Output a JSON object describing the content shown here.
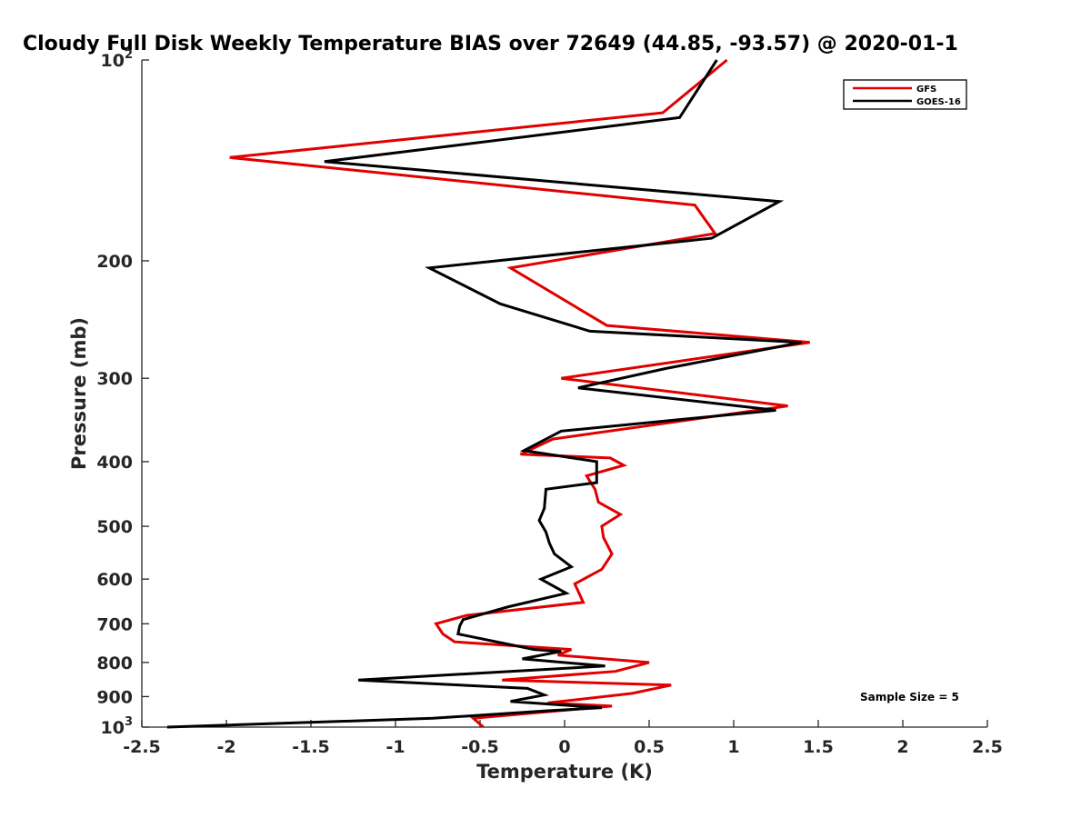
{
  "chart_data": {
    "type": "line",
    "title": "Cloudy Full Disk Weekly Temperature BIAS over 72649 (44.85, -93.57) @ 2020-01-1",
    "xlabel": "Temperature (K)",
    "ylabel": "Pressure (mb)",
    "xlim": [
      -2.5,
      2.5
    ],
    "ylim": [
      100,
      1000
    ],
    "y_scale": "log",
    "y_reversed": true,
    "x_ticks": [
      "-2.5",
      "-2",
      "-1.5",
      "-1",
      "-0.5",
      "0",
      "0.5",
      "1",
      "1.5",
      "2",
      "2.5"
    ],
    "y_ticks": [
      {
        "value": 100,
        "base": "10",
        "exp": "2"
      },
      {
        "value": 200,
        "label": "200"
      },
      {
        "value": 300,
        "label": "300"
      },
      {
        "value": 400,
        "label": "400"
      },
      {
        "value": 500,
        "label": "500"
      },
      {
        "value": 600,
        "label": "600"
      },
      {
        "value": 700,
        "label": "700"
      },
      {
        "value": 800,
        "label": "800"
      },
      {
        "value": 900,
        "label": "900"
      },
      {
        "value": 1000,
        "base": "10",
        "exp": "3"
      }
    ],
    "legend_position": "top-right",
    "annotation": "Sample Size = 5",
    "grid": false,
    "series": [
      {
        "name": "GFS",
        "color": "#e00000",
        "x": [
          0.96,
          0.58,
          -1.98,
          0.77,
          0.89,
          -0.32,
          0.25,
          1.45,
          -0.02,
          1.32,
          -0.07,
          -0.26,
          0.27,
          0.35,
          0.13,
          0.18,
          0.2,
          0.33,
          0.22,
          0.23,
          0.28,
          0.22,
          0.06,
          0.11,
          -0.58,
          -0.76,
          -0.72,
          -0.65,
          0.04,
          -0.04,
          0.5,
          0.3,
          -0.37,
          0.63,
          0.4,
          -0.1,
          0.28,
          -0.54,
          -0.48
        ],
        "y": [
          100,
          120,
          140,
          165,
          182,
          205,
          250,
          265,
          300,
          330,
          370,
          390,
          395,
          405,
          420,
          440,
          460,
          480,
          500,
          520,
          550,
          580,
          610,
          650,
          680,
          700,
          725,
          745,
          765,
          780,
          800,
          825,
          850,
          865,
          890,
          920,
          930,
          970,
          1000
        ]
      },
      {
        "name": "GOES-16",
        "color": "#000000",
        "x": [
          0.9,
          0.68,
          -1.42,
          1.27,
          0.87,
          -0.8,
          -0.38,
          0.15,
          1.4,
          0.6,
          0.08,
          1.25,
          -0.02,
          -0.24,
          0.19,
          0.19,
          -0.11,
          -0.12,
          -0.15,
          -0.11,
          -0.09,
          -0.06,
          0.04,
          -0.14,
          0.01,
          -0.33,
          -0.6,
          -0.62,
          -0.63,
          -0.18,
          -0.02,
          -0.25,
          0.24,
          -1.22,
          -0.22,
          -0.12,
          -0.32,
          0.22,
          -0.1,
          -0.78,
          -2.35
        ],
        "y": [
          100,
          122,
          142,
          163,
          185,
          205,
          232,
          255,
          265,
          290,
          310,
          335,
          360,
          385,
          400,
          430,
          440,
          470,
          490,
          510,
          530,
          550,
          575,
          600,
          630,
          660,
          690,
          705,
          725,
          765,
          770,
          790,
          810,
          850,
          875,
          895,
          915,
          935,
          945,
          970,
          1000
        ]
      }
    ]
  }
}
